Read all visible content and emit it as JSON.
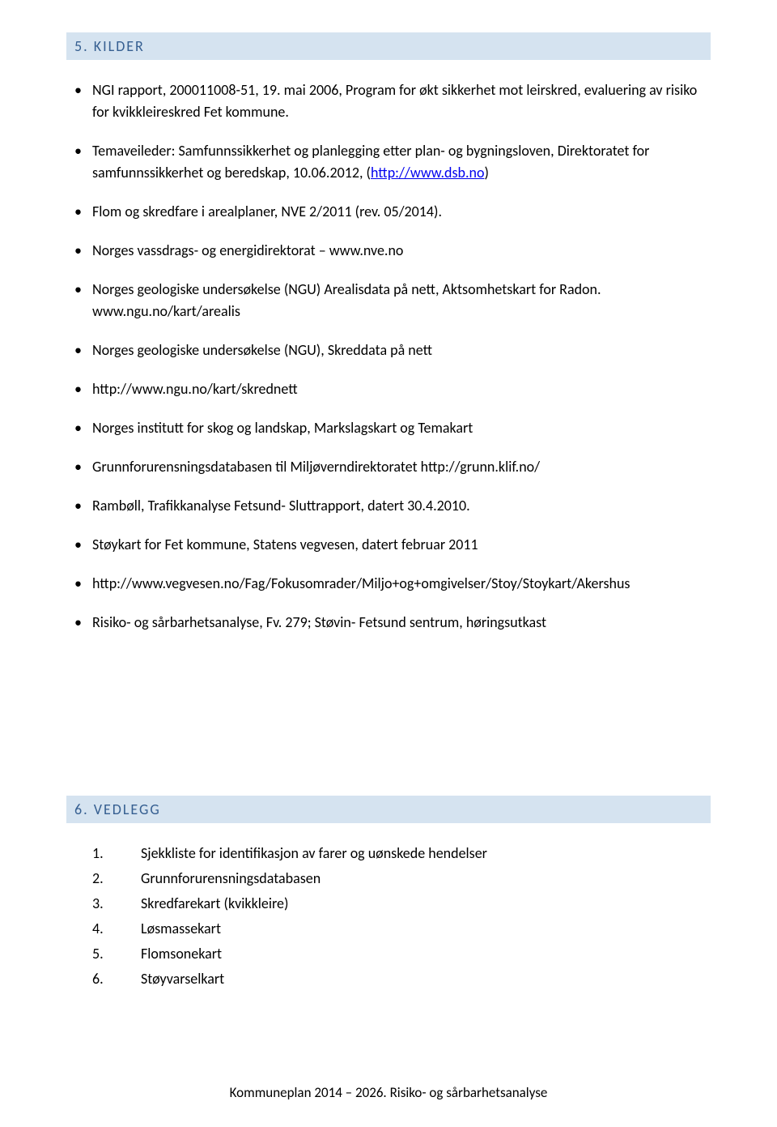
{
  "sections": {
    "kilder": {
      "title": "5. KILDER",
      "items": [
        {
          "text": "NGI rapport, 200011008-51, 19. mai 2006, Program for økt sikkerhet mot leirskred, evaluering av risiko for kvikkleireskred Fet kommune."
        },
        {
          "prefix": "Temaveileder: Samfunnssikkerhet og planlegging etter plan- og bygningsloven, Direktoratet for samfunnssikkerhet og beredskap, 10.06.2012, (",
          "link": "http://www.dsb.no",
          "suffix": ")"
        },
        {
          "text": "Flom og skredfare i arealplaner, NVE 2/2011 (rev. 05/2014)."
        },
        {
          "text": "Norges vassdrags- og energidirektorat – www.nve.no"
        },
        {
          "text": "Norges geologiske undersøkelse (NGU) Arealisdata på nett, Aktsomhetskart for Radon. www.ngu.no/kart/arealis"
        },
        {
          "text": "Norges geologiske undersøkelse (NGU), Skreddata på nett"
        },
        {
          "text": "http://www.ngu.no/kart/skrednett"
        },
        {
          "text": "Norges institutt for skog og landskap, Markslagskart og Temakart"
        },
        {
          "text": "Grunnforurensningsdatabasen til Miljøverndirektoratet http://grunn.klif.no/"
        },
        {
          "text": "Rambøll, Trafikkanalyse Fetsund- Sluttrapport, datert 30.4.2010."
        },
        {
          "text": "Støykart for Fet kommune, Statens vegvesen, datert februar 2011"
        },
        {
          "text": "http://www.vegvesen.no/Fag/Fokusomrader/Miljo+og+omgivelser/Stoy/Stoykart/Akershus"
        },
        {
          "text": "Risiko- og sårbarhetsanalyse, Fv. 279; Støvin- Fetsund sentrum, høringsutkast"
        }
      ]
    },
    "vedlegg": {
      "title": "6. VEDLEGG",
      "items": [
        {
          "num": "1.",
          "text": "Sjekkliste for identifikasjon av farer og uønskede hendelser"
        },
        {
          "num": "2.",
          "text": "Grunnforurensningsdatabasen"
        },
        {
          "num": "3.",
          "text": "Skredfarekart (kvikkleire)"
        },
        {
          "num": "4.",
          "text": "Løsmassekart"
        },
        {
          "num": "5.",
          "text": "Flomsonekart"
        },
        {
          "num": "6.",
          "text": "Støyvarselkart"
        }
      ]
    }
  },
  "footer": "Kommuneplan 2014 – 2026. Risiko- og sårbarhetsanalyse",
  "colors": {
    "header_bg": "#d5e3f0",
    "header_text": "#365f91",
    "link": "#0000ee",
    "body_text": "#000000",
    "page_bg": "#ffffff"
  }
}
